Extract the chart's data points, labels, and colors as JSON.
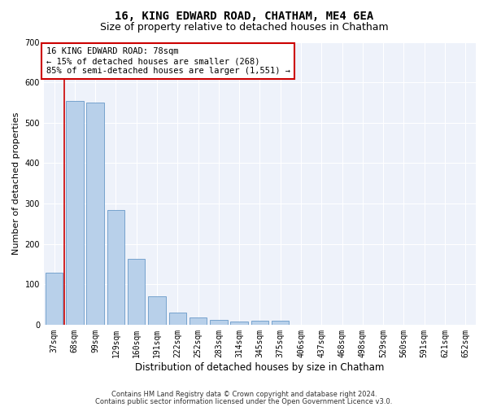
{
  "title1": "16, KING EDWARD ROAD, CHATHAM, ME4 6EA",
  "title2": "Size of property relative to detached houses in Chatham",
  "xlabel": "Distribution of detached houses by size in Chatham",
  "ylabel": "Number of detached properties",
  "footnote1": "Contains HM Land Registry data © Crown copyright and database right 2024.",
  "footnote2": "Contains public sector information licensed under the Open Government Licence v3.0.",
  "categories": [
    "37sqm",
    "68sqm",
    "99sqm",
    "129sqm",
    "160sqm",
    "191sqm",
    "222sqm",
    "252sqm",
    "283sqm",
    "314sqm",
    "345sqm",
    "375sqm",
    "406sqm",
    "437sqm",
    "468sqm",
    "498sqm",
    "529sqm",
    "560sqm",
    "591sqm",
    "621sqm",
    "652sqm"
  ],
  "values": [
    128,
    553,
    550,
    283,
    163,
    71,
    29,
    17,
    11,
    7,
    10,
    10,
    0,
    0,
    0,
    0,
    0,
    0,
    0,
    0,
    0
  ],
  "bar_color": "#b8d0ea",
  "bar_edgecolor": "#6899c8",
  "vline_x": 0.5,
  "vline_color": "#cc0000",
  "annotation_text": "16 KING EDWARD ROAD: 78sqm\n← 15% of detached houses are smaller (268)\n85% of semi-detached houses are larger (1,551) →",
  "annotation_box_color": "#cc0000",
  "ylim": [
    0,
    700
  ],
  "yticks": [
    0,
    100,
    200,
    300,
    400,
    500,
    600,
    700
  ],
  "background_color": "#eef2fa",
  "grid_color": "#ffffff",
  "title1_fontsize": 10,
  "title2_fontsize": 9,
  "xlabel_fontsize": 8.5,
  "ylabel_fontsize": 8,
  "tick_fontsize": 7,
  "annotation_fontsize": 7.5,
  "footnote_fontsize": 6
}
